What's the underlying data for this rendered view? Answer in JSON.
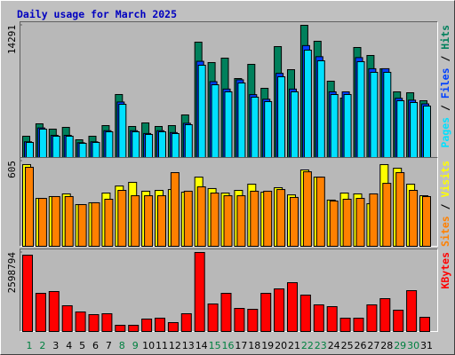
{
  "chart_data": [
    {
      "type": "bar",
      "title": "Daily usage for March 2025",
      "categories": [
        "1",
        "2",
        "3",
        "4",
        "5",
        "6",
        "7",
        "8",
        "9",
        "10",
        "11",
        "12",
        "13",
        "14",
        "15",
        "16",
        "17",
        "18",
        "19",
        "20",
        "21",
        "22",
        "23",
        "24",
        "25",
        "26",
        "27",
        "28",
        "29",
        "30",
        "31"
      ],
      "category_label_colors": [
        "#008040",
        "#008040",
        "#000000",
        "#000000",
        "#000000",
        "#000000",
        "#000000",
        "#008040",
        "#008040",
        "#000000",
        "#000000",
        "#000000",
        "#000000",
        "#000000",
        "#008040",
        "#008040",
        "#000000",
        "#000000",
        "#000000",
        "#000000",
        "#000000",
        "#008040",
        "#008040",
        "#000000",
        "#000000",
        "#000000",
        "#000000",
        "#000000",
        "#008040",
        "#008040",
        "#000000"
      ],
      "legend_separator": "/",
      "ylim": [
        0,
        14291
      ],
      "yticks": [
        14291
      ],
      "series": [
        {
          "name": "Hits",
          "color": "#00805c",
          "values": [
            2302,
            3644,
            3069,
            3261,
            1918,
            2302,
            3453,
            6810,
            3357,
            3741,
            3357,
            3453,
            4604,
            12469,
            10263,
            10742,
            8536,
            10071,
            7481,
            11989,
            9495,
            14291,
            12565,
            8249,
            6426,
            11893,
            11030,
            9591,
            7098,
            7002,
            6138
          ]
        },
        {
          "name": "Files",
          "color": "#0040ff",
          "values": [
            1700,
            3200,
            2400,
            2400,
            1600,
            1700,
            2900,
            6000,
            2900,
            2600,
            2900,
            2700,
            3700,
            10400,
            8200,
            7400,
            8400,
            6800,
            6300,
            9100,
            7400,
            12100,
            10900,
            7100,
            7100,
            10800,
            9600,
            9600,
            6400,
            6200,
            5800
          ]
        },
        {
          "name": "Pages",
          "color": "#00e0ff",
          "values": [
            1631,
            3069,
            2302,
            2302,
            1535,
            1631,
            2781,
            5755,
            2781,
            2494,
            2781,
            2590,
            3549,
            9975,
            7865,
            7098,
            8057,
            6522,
            6042,
            8728,
            7098,
            11605,
            10455,
            6810,
            6810,
            10359,
            9208,
            9208,
            6138,
            5947,
            5563
          ]
        }
      ]
    },
    {
      "type": "bar",
      "ylim": [
        0,
        605
      ],
      "yticks": [
        605
      ],
      "series": [
        {
          "name": "Visits",
          "color": "#ffff00",
          "values": [
            580,
            340,
            353,
            372,
            296,
            309,
            378,
            428,
            454,
            391,
            397,
            403,
            384,
            491,
            410,
            378,
            397,
            441,
            384,
            416,
            365,
            542,
            491,
            328,
            378,
            372,
            302,
            580,
            554,
            441,
            359
          ]
        },
        {
          "name": "Sites",
          "color": "#ff8000",
          "values": [
            561,
            340,
            353,
            353,
            296,
            309,
            334,
            397,
            359,
            359,
            359,
            523,
            391,
            422,
            378,
            359,
            359,
            391,
            391,
            403,
            347,
            529,
            491,
            321,
            334,
            340,
            372,
            447,
            523,
            397,
            353
          ]
        }
      ]
    },
    {
      "type": "bar",
      "ylim": [
        0,
        2598794
      ],
      "yticks": [
        2598794
      ],
      "series": [
        {
          "name": "KBytes",
          "color": "#ff0000",
          "values": [
            2511200,
            1255600,
            1314000,
            846800,
            642400,
            554800,
            584000,
            204400,
            204400,
            408800,
            438000,
            292000,
            584000,
            2598794,
            905200,
            1255600,
            759200,
            730000,
            1255600,
            1401600,
            1606000,
            1197200,
            876000,
            817600,
            438000,
            438000,
            876000,
            1080400,
            700800,
            1343200,
            467200
          ]
        }
      ]
    }
  ]
}
